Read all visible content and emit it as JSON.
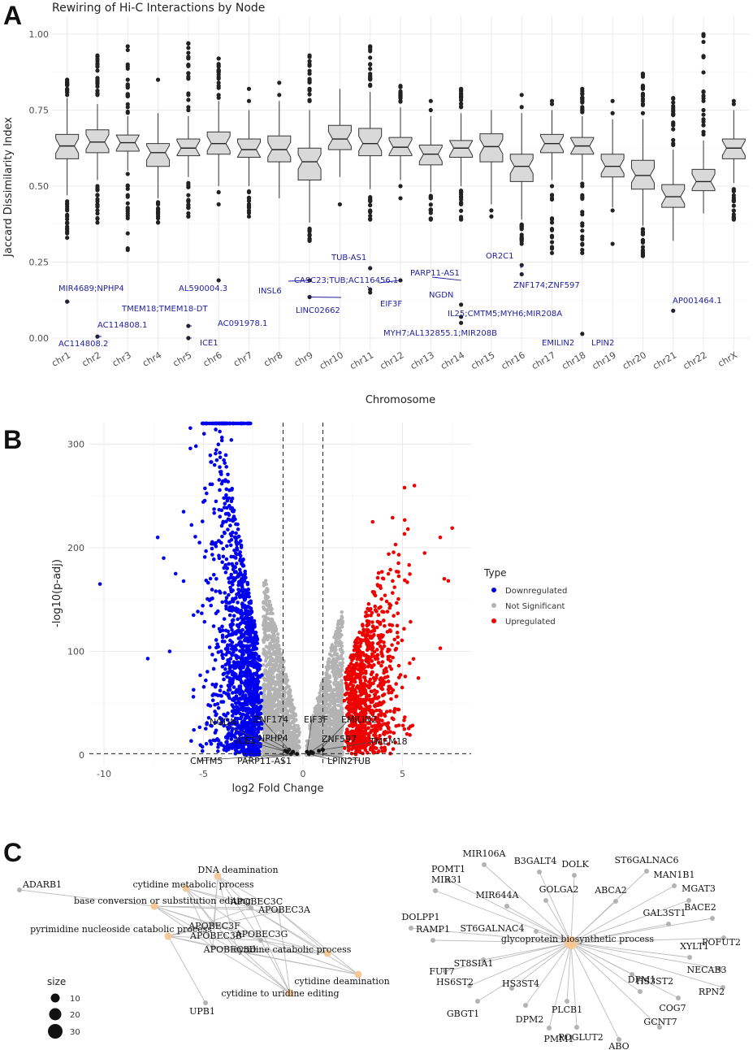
{
  "panels": {
    "a": "A",
    "b": "B",
    "c": "C"
  },
  "colors": {
    "box_fill": "#d9d9d9",
    "down": "#0000ee",
    "up": "#ee0000",
    "ns": "#b3b3b3",
    "gene_label": "#1f1f9e",
    "pathway_node": "#f5c898",
    "gene_node": "#b3b3b3"
  },
  "chart_data": [
    {
      "type": "boxplot",
      "title": "Rewiring of Hi-C Interactions by Node",
      "xlabel": "Chromosome",
      "ylabel": "Jaccard Dissimilarity Index",
      "ylim": [
        0,
        1
      ],
      "yticks": [
        "0.00",
        "0.25",
        "0.50",
        "0.75",
        "1.00"
      ],
      "categories": [
        "chr1",
        "chr2",
        "chr3",
        "chr4",
        "chr5",
        "chr6",
        "chr7",
        "chr8",
        "chr9",
        "chr10",
        "chr11",
        "chr12",
        "chr13",
        "chr14",
        "chr15",
        "chr16",
        "chr17",
        "chr18",
        "chr19",
        "chr20",
        "chr21",
        "chr22",
        "chrX"
      ],
      "boxes": [
        {
          "q1": 0.59,
          "med": 0.632,
          "q3": 0.67,
          "wl": 0.47,
          "wh": 0.79,
          "out": [
            0.8,
            0.82,
            0.85,
            0.45,
            0.42,
            0.4,
            0.38,
            0.35,
            0.33,
            0.12
          ]
        },
        {
          "q1": 0.61,
          "med": 0.645,
          "q3": 0.685,
          "wl": 0.52,
          "wh": 0.77,
          "out": [
            0.8,
            0.84,
            0.88,
            0.9,
            0.93,
            0.5,
            0.47,
            0.44,
            0.41,
            0.38,
            0.005
          ]
        },
        {
          "q1": 0.615,
          "med": 0.643,
          "q3": 0.668,
          "wl": 0.55,
          "wh": 0.73,
          "out": [
            0.76,
            0.8,
            0.85,
            0.9,
            0.96,
            0.54,
            0.5,
            0.47,
            0.29
          ]
        },
        {
          "q1": 0.565,
          "med": 0.61,
          "q3": 0.64,
          "wl": 0.46,
          "wh": 0.74,
          "out": [
            0.44,
            0.41,
            0.38,
            0.85
          ]
        },
        {
          "q1": 0.6,
          "med": 0.625,
          "q3": 0.655,
          "wl": 0.53,
          "wh": 0.73,
          "out": [
            0.75,
            0.8,
            0.86,
            0.92,
            0.97,
            0.51,
            0.47,
            0.43,
            0.4,
            0.04,
            0.0
          ]
        },
        {
          "q1": 0.605,
          "med": 0.64,
          "q3": 0.678,
          "wl": 0.5,
          "wh": 0.78,
          "out": [
            0.8,
            0.84,
            0.88,
            0.92,
            0.48,
            0.44,
            0.19
          ]
        },
        {
          "q1": 0.595,
          "med": 0.62,
          "q3": 0.655,
          "wl": 0.5,
          "wh": 0.75,
          "out": [
            0.78,
            0.82,
            0.48,
            0.44,
            0.4
          ]
        },
        {
          "q1": 0.58,
          "med": 0.62,
          "q3": 0.665,
          "wl": 0.46,
          "wh": 0.78,
          "out": [
            0.8,
            0.84
          ]
        },
        {
          "q1": 0.52,
          "med": 0.58,
          "q3": 0.625,
          "wl": 0.38,
          "wh": 0.75,
          "out": [
            0.78,
            0.82,
            0.87,
            0.93,
            0.36,
            0.34,
            0.32,
            0.19,
            0.135
          ]
        },
        {
          "q1": 0.62,
          "med": 0.655,
          "q3": 0.7,
          "wl": 0.53,
          "wh": 0.82,
          "out": [
            0.44
          ]
        },
        {
          "q1": 0.6,
          "med": 0.64,
          "q3": 0.69,
          "wl": 0.49,
          "wh": 0.81,
          "out": [
            0.83,
            0.86,
            0.9,
            0.96,
            0.45,
            0.42,
            0.39,
            0.23,
            0.16,
            0.15
          ]
        },
        {
          "q1": 0.6,
          "med": 0.628,
          "q3": 0.66,
          "wl": 0.52,
          "wh": 0.76,
          "out": [
            0.78,
            0.8,
            0.83,
            0.5,
            0.46,
            0.19
          ]
        },
        {
          "q1": 0.57,
          "med": 0.605,
          "q3": 0.635,
          "wl": 0.48,
          "wh": 0.73,
          "out": [
            0.75,
            0.78,
            0.46,
            0.42,
            0.39
          ]
        },
        {
          "q1": 0.595,
          "med": 0.625,
          "q3": 0.65,
          "wl": 0.5,
          "wh": 0.74,
          "out": [
            0.76,
            0.79,
            0.82,
            0.48,
            0.44,
            0.39,
            0.11,
            0.07,
            0.05
          ]
        },
        {
          "q1": 0.58,
          "med": 0.63,
          "q3": 0.672,
          "wl": 0.44,
          "wh": 0.75,
          "out": [
            0.42,
            0.4
          ]
        },
        {
          "q1": 0.515,
          "med": 0.565,
          "q3": 0.605,
          "wl": 0.39,
          "wh": 0.74,
          "out": [
            0.76,
            0.8,
            0.37,
            0.34,
            0.31,
            0.24,
            0.21
          ]
        },
        {
          "q1": 0.61,
          "med": 0.64,
          "q3": 0.67,
          "wl": 0.52,
          "wh": 0.75,
          "out": [
            0.77,
            0.78,
            0.5,
            0.46,
            0.38,
            0.28
          ]
        },
        {
          "q1": 0.605,
          "med": 0.632,
          "q3": 0.66,
          "wl": 0.52,
          "wh": 0.73,
          "out": [
            0.75,
            0.78,
            0.82,
            0.5,
            0.47,
            0.37,
            0.31,
            0.28,
            0.014
          ]
        },
        {
          "q1": 0.53,
          "med": 0.565,
          "q3": 0.605,
          "wl": 0.43,
          "wh": 0.72,
          "out": [
            0.74,
            0.78,
            0.42,
            0.31
          ]
        },
        {
          "q1": 0.49,
          "med": 0.535,
          "q3": 0.585,
          "wl": 0.37,
          "wh": 0.72,
          "out": [
            0.74,
            0.78,
            0.82,
            0.87,
            0.35,
            0.32,
            0.29,
            0.27
          ]
        },
        {
          "q1": 0.43,
          "med": 0.465,
          "q3": 0.505,
          "wl": 0.32,
          "wh": 0.62,
          "out": [
            0.64,
            0.7,
            0.75,
            0.79,
            0.09
          ]
        },
        {
          "q1": 0.485,
          "med": 0.515,
          "q3": 0.555,
          "wl": 0.41,
          "wh": 0.65,
          "out": [
            0.67,
            0.7,
            0.72,
            0.75,
            0.78,
            1.0
          ]
        },
        {
          "q1": 0.59,
          "med": 0.625,
          "q3": 0.655,
          "wl": 0.51,
          "wh": 0.75,
          "out": [
            0.77,
            0.78,
            0.49,
            0.45,
            0.42,
            0.39
          ]
        }
      ],
      "annotations": [
        {
          "text": "MIR4689;NPHP4",
          "cat": 0,
          "val": 0.12
        },
        {
          "text": "TMEM18;TMEM18-DT",
          "cat": 1,
          "val": 0.005
        },
        {
          "text": "AC114808.1",
          "cat": 1,
          "val": 0.005
        },
        {
          "text": "AC114808.2",
          "cat": 1,
          "val": 0.0
        },
        {
          "text": "AL590004.3",
          "cat": 5,
          "val": 0.19
        },
        {
          "text": "AC091978.1",
          "cat": 4,
          "val": 0.04
        },
        {
          "text": "ICE1",
          "cat": 4,
          "val": 0.0
        },
        {
          "text": "INSL6",
          "cat": 8,
          "val": 0.19
        },
        {
          "text": "LINC02662",
          "cat": 8,
          "val": 0.135
        },
        {
          "text": "CASC23;TUB;AC116456.1",
          "cat": 10,
          "val": 0.16
        },
        {
          "text": "TUB-AS1",
          "cat": 10,
          "val": 0.23
        },
        {
          "text": "EIF3F",
          "cat": 11,
          "val": 0.19
        },
        {
          "text": "PARP11-AS1",
          "cat": 13,
          "val": 0.19
        },
        {
          "text": "NGDN",
          "cat": 13,
          "val": 0.11
        },
        {
          "text": "IL25;CMTM5;MYH6;MIR208A",
          "cat": 13,
          "val": 0.07
        },
        {
          "text": "MYH7;AL132855.1;MIR208B",
          "cat": 13,
          "val": 0.05
        },
        {
          "text": "OR2C1",
          "cat": 15,
          "val": 0.24
        },
        {
          "text": "ZNF174;ZNF597",
          "cat": 15,
          "val": 0.21
        },
        {
          "text": "EMILIN2",
          "cat": 17,
          "val": 0.014
        },
        {
          "text": "LPIN2",
          "cat": 17,
          "val": 0.014
        },
        {
          "text": "AP001464.1",
          "cat": 20,
          "val": 0.09
        }
      ]
    },
    {
      "type": "scatter",
      "subtype": "volcano",
      "xlabel": "log2 Fold Change",
      "ylabel": "-log10(p-adj)",
      "xlim": [
        -11,
        8.2
      ],
      "ylim": [
        -4,
        325
      ],
      "xticks": [
        -10,
        -5,
        0,
        5
      ],
      "yticks": [
        0,
        100,
        200,
        300
      ],
      "fc_threshold": 1,
      "padj_line": 1.3,
      "legend": {
        "title": "Type",
        "entries": [
          "Downregulated",
          "Not Significant",
          "Upregulated"
        ],
        "position": "right"
      },
      "series": [
        {
          "name": "Downregulated",
          "x_range": [
            -10.2,
            -2.0
          ],
          "y_max": 320,
          "approx_points": 1400,
          "extremes": [
            [
              -10.2,
              165
            ],
            [
              -7.8,
              93
            ],
            [
              -7.3,
              210
            ],
            [
              -7.0,
              190
            ],
            [
              -6.7,
              100
            ],
            [
              -6.4,
              175
            ],
            [
              -5.6,
              222
            ],
            [
              -5.5,
              135
            ],
            [
              -5.2,
              205
            ],
            [
              -4.1,
              320
            ],
            [
              -3.6,
              304
            ]
          ]
        },
        {
          "name": "Not Significant",
          "x_range": [
            -2.0,
            2.0
          ],
          "y_max": 175,
          "approx_points": 2500
        },
        {
          "name": "Upregulated",
          "x_range": [
            2.0,
            7.5
          ],
          "y_max": 260,
          "approx_points": 900,
          "extremes": [
            [
              5.6,
              260
            ],
            [
              5.1,
              258
            ],
            [
              4.5,
              229
            ],
            [
              7.5,
              219
            ],
            [
              6.9,
              210
            ],
            [
              7.1,
              170
            ],
            [
              7.3,
              168
            ],
            [
              6.9,
              103
            ],
            [
              3.5,
              225
            ]
          ]
        }
      ],
      "labels": [
        {
          "text": "NGDN",
          "x": -0.9,
          "y": 4
        },
        {
          "text": "ZNF174",
          "x": -0.7,
          "y": 5
        },
        {
          "text": "ICE1",
          "x": -0.8,
          "y": 3
        },
        {
          "text": "NPHP4",
          "x": -0.5,
          "y": 3
        },
        {
          "text": "CMTM5",
          "x": -0.6,
          "y": 1
        },
        {
          "text": "PARP11-AS1",
          "x": -0.3,
          "y": 1
        },
        {
          "text": "EIF3F",
          "x": 0.2,
          "y": 3
        },
        {
          "text": "EMILIN2",
          "x": 0.8,
          "y": 4
        },
        {
          "text": "ZNF597",
          "x": 0.4,
          "y": 3
        },
        {
          "text": "TMEM18",
          "x": 1.0,
          "y": 5
        },
        {
          "text": "LPIN2",
          "x": 0.3,
          "y": 1
        },
        {
          "text": "TUB",
          "x": 0.5,
          "y": 2
        }
      ]
    },
    {
      "type": "network",
      "subtype": "cnetplot",
      "size_legend": {
        "title": "size",
        "values": [
          "10",
          "20",
          "30"
        ]
      },
      "networks": [
        {
          "pathways": [
            "DNA deamination",
            "cytidine metabolic process",
            "base conversion or substitution editing",
            "pyrimidine nucleoside catabolic process",
            "cytidine catabolic process",
            "cytidine deamination",
            "cytidine to uridine editing"
          ],
          "genes": [
            "ADARB1",
            "APOBEC3C",
            "APOBEC3A",
            "APOBEC3F",
            "APOBEC3G",
            "APOBEC3B",
            "APOBEC3D",
            "UPB1"
          ]
        },
        {
          "pathways": [
            "glycoprotein biosynthetic process"
          ],
          "genes": [
            "B3GALT4",
            "DOLK",
            "MIR106A",
            "ST6GALNAC6",
            "POMT1",
            "MAN1B1",
            "MIR31",
            "GOLGA2",
            "ABCA2",
            "MGAT3",
            "MIR644A",
            "BACE2",
            "DOLPP1",
            "GAL3ST1",
            "RAMP1",
            "ST6GALNAC4",
            "POFUT2",
            "XYLT1",
            "ST8SIA1",
            "NECAB3",
            "FUT7",
            "DPM1",
            "HS6ST2",
            "HS3ST4",
            "RPN2",
            "HS3ST2",
            "COG7",
            "GBGT1",
            "PLCB1",
            "DPM2",
            "GCNT7",
            "POGLUT2",
            "PMM1",
            "ABO"
          ]
        }
      ]
    }
  ]
}
